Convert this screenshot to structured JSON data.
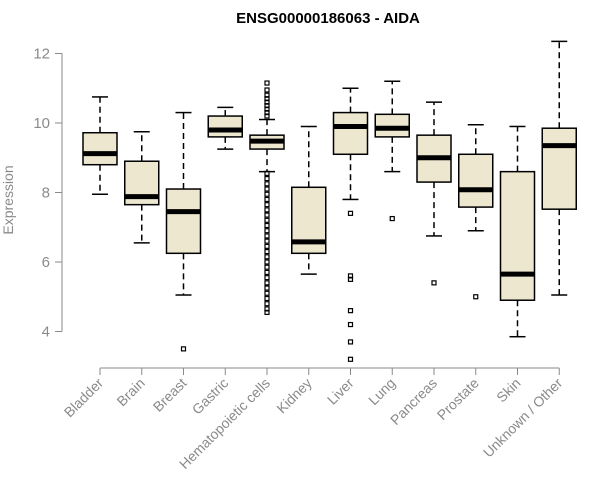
{
  "chart_data": {
    "type": "boxplot",
    "title": "ENSG00000186063 - AIDA",
    "xlabel": "",
    "ylabel": "Expression",
    "ylim": [
      3,
      12.5
    ],
    "yticks": [
      4,
      6,
      8,
      10,
      12
    ],
    "box_color": "#ede7cf",
    "categories": [
      "Bladder",
      "Brain",
      "Breast",
      "Gastric",
      "Hematopoietic cells",
      "Kidney",
      "Liver",
      "Lung",
      "Pancreas",
      "Prostate",
      "Skin",
      "Unknown / Other"
    ],
    "boxes": [
      {
        "name": "Bladder",
        "whisker_low": 7.95,
        "q1": 8.8,
        "median": 9.12,
        "q3": 9.72,
        "whisker_high": 10.75,
        "outliers": []
      },
      {
        "name": "Brain",
        "whisker_low": 6.55,
        "q1": 7.65,
        "median": 7.88,
        "q3": 8.9,
        "whisker_high": 9.75,
        "outliers": []
      },
      {
        "name": "Breast",
        "whisker_low": 5.05,
        "q1": 6.25,
        "median": 7.45,
        "q3": 8.1,
        "whisker_high": 10.3,
        "outliers": [
          3.5
        ]
      },
      {
        "name": "Gastric",
        "whisker_low": 9.25,
        "q1": 9.6,
        "median": 9.8,
        "q3": 10.2,
        "whisker_high": 10.45,
        "outliers": []
      },
      {
        "name": "Hematopoietic cells",
        "whisker_low": 8.6,
        "q1": 9.25,
        "median": 9.48,
        "q3": 9.65,
        "whisker_high": 10.1,
        "outliers": [
          11.15,
          10.95,
          10.8,
          10.7,
          10.6,
          10.5,
          10.4,
          10.3,
          10.2,
          8.55,
          8.4,
          8.25,
          8.1,
          7.95,
          7.8,
          7.65,
          7.5,
          7.35,
          7.2,
          7.05,
          6.9,
          6.75,
          6.6,
          6.45,
          6.3,
          6.15,
          6.0,
          5.85,
          5.7,
          5.55,
          5.4,
          5.25,
          5.1,
          4.95,
          4.8,
          4.65,
          4.55
        ]
      },
      {
        "name": "Kidney",
        "whisker_low": 5.65,
        "q1": 6.25,
        "median": 6.58,
        "q3": 8.15,
        "whisker_high": 9.9,
        "outliers": []
      },
      {
        "name": "Liver",
        "whisker_low": 7.8,
        "q1": 9.1,
        "median": 9.9,
        "q3": 10.3,
        "whisker_high": 11.0,
        "outliers": [
          7.4,
          5.6,
          5.5,
          4.6,
          4.2,
          3.7,
          3.2
        ]
      },
      {
        "name": "Lung",
        "whisker_low": 8.6,
        "q1": 9.6,
        "median": 9.85,
        "q3": 10.25,
        "whisker_high": 11.2,
        "outliers": [
          7.25
        ]
      },
      {
        "name": "Pancreas",
        "whisker_low": 6.75,
        "q1": 8.3,
        "median": 9.0,
        "q3": 9.65,
        "whisker_high": 10.6,
        "outliers": [
          5.4
        ]
      },
      {
        "name": "Prostate",
        "whisker_low": 6.9,
        "q1": 7.58,
        "median": 8.08,
        "q3": 9.1,
        "whisker_high": 9.95,
        "outliers": [
          5.0
        ]
      },
      {
        "name": "Skin",
        "whisker_low": 3.85,
        "q1": 4.9,
        "median": 5.65,
        "q3": 8.6,
        "whisker_high": 9.9,
        "outliers": []
      },
      {
        "name": "Unknown / Other",
        "whisker_low": 5.05,
        "q1": 7.52,
        "median": 9.35,
        "q3": 9.85,
        "whisker_high": 12.35,
        "outliers": []
      }
    ]
  }
}
